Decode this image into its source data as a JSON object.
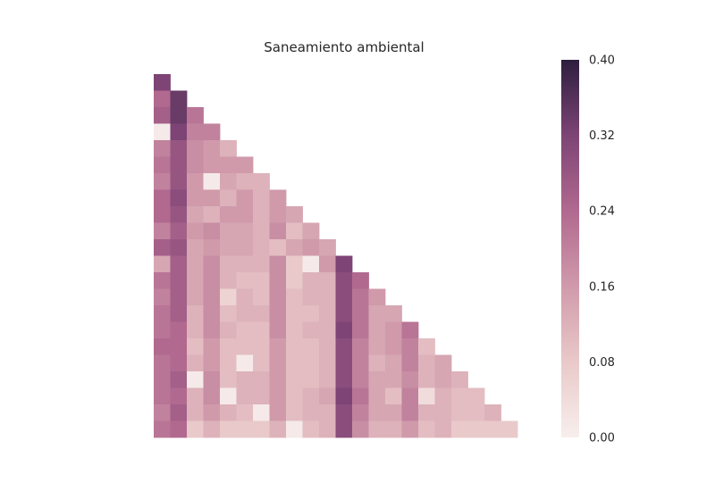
{
  "chart_data": {
    "type": "heatmap",
    "title": "Saneamiento ambiental",
    "mask": "lower-triangle",
    "xlabel": "",
    "ylabel": "",
    "colorbar": {
      "vmin": 0.0,
      "vmax": 0.4,
      "ticks": [
        0.0,
        0.08,
        0.16,
        0.24,
        0.32,
        0.4
      ],
      "tick_labels": [
        "0.00",
        "0.08",
        "0.16",
        "0.24",
        "0.32",
        "0.40"
      ],
      "colormap": [
        "#f7efed",
        "#e9c9c9",
        "#d09aab",
        "#b1698f",
        "#7d4475",
        "#2d1e3e"
      ]
    },
    "rows": [
      [
        0.32
      ],
      [
        0.24,
        0.34
      ],
      [
        0.26,
        0.34,
        0.22
      ],
      [
        0.01,
        0.32,
        0.2,
        0.2
      ],
      [
        0.2,
        0.28,
        0.18,
        0.16,
        0.12
      ],
      [
        0.22,
        0.28,
        0.18,
        0.16,
        0.16,
        0.16
      ],
      [
        0.2,
        0.28,
        0.16,
        0.01,
        0.14,
        0.12,
        0.12
      ],
      [
        0.24,
        0.3,
        0.16,
        0.16,
        0.12,
        0.16,
        0.12,
        0.16
      ],
      [
        0.24,
        0.28,
        0.14,
        0.12,
        0.16,
        0.16,
        0.12,
        0.16,
        0.14
      ],
      [
        0.2,
        0.26,
        0.16,
        0.18,
        0.14,
        0.14,
        0.12,
        0.18,
        0.1,
        0.14
      ],
      [
        0.26,
        0.28,
        0.14,
        0.16,
        0.14,
        0.14,
        0.12,
        0.1,
        0.14,
        0.16,
        0.14
      ],
      [
        0.14,
        0.26,
        0.14,
        0.18,
        0.12,
        0.12,
        0.12,
        0.18,
        0.08,
        0.01,
        0.16,
        0.32
      ],
      [
        0.22,
        0.26,
        0.14,
        0.18,
        0.12,
        0.1,
        0.1,
        0.18,
        0.08,
        0.12,
        0.12,
        0.3,
        0.24
      ],
      [
        0.2,
        0.26,
        0.14,
        0.18,
        0.06,
        0.12,
        0.1,
        0.18,
        0.1,
        0.12,
        0.12,
        0.3,
        0.22,
        0.16
      ],
      [
        0.22,
        0.26,
        0.12,
        0.18,
        0.1,
        0.12,
        0.12,
        0.18,
        0.1,
        0.1,
        0.12,
        0.3,
        0.22,
        0.14,
        0.14
      ],
      [
        0.22,
        0.24,
        0.12,
        0.18,
        0.12,
        0.1,
        0.1,
        0.18,
        0.1,
        0.12,
        0.12,
        0.32,
        0.22,
        0.14,
        0.16,
        0.22
      ],
      [
        0.24,
        0.24,
        0.1,
        0.16,
        0.1,
        0.1,
        0.1,
        0.16,
        0.1,
        0.1,
        0.12,
        0.3,
        0.2,
        0.14,
        0.16,
        0.2,
        0.1
      ],
      [
        0.22,
        0.24,
        0.12,
        0.16,
        0.1,
        0.01,
        0.1,
        0.16,
        0.1,
        0.1,
        0.12,
        0.3,
        0.2,
        0.12,
        0.14,
        0.2,
        0.12,
        0.14
      ],
      [
        0.22,
        0.26,
        0.01,
        0.18,
        0.1,
        0.12,
        0.12,
        0.16,
        0.1,
        0.1,
        0.12,
        0.3,
        0.2,
        0.14,
        0.14,
        0.18,
        0.12,
        0.14,
        0.12
      ],
      [
        0.22,
        0.24,
        0.12,
        0.18,
        0.01,
        0.12,
        0.12,
        0.16,
        0.1,
        0.12,
        0.14,
        0.32,
        0.22,
        0.14,
        0.1,
        0.2,
        0.04,
        0.12,
        0.1,
        0.1
      ],
      [
        0.2,
        0.26,
        0.12,
        0.16,
        0.12,
        0.1,
        0.01,
        0.16,
        0.1,
        0.12,
        0.12,
        0.3,
        0.2,
        0.14,
        0.14,
        0.2,
        0.12,
        0.12,
        0.1,
        0.1,
        0.12
      ],
      [
        0.22,
        0.24,
        0.08,
        0.12,
        0.08,
        0.08,
        0.08,
        0.12,
        0.01,
        0.1,
        0.12,
        0.3,
        0.18,
        0.12,
        0.12,
        0.16,
        0.1,
        0.12,
        0.08,
        0.08,
        0.08,
        0.08
      ]
    ]
  }
}
